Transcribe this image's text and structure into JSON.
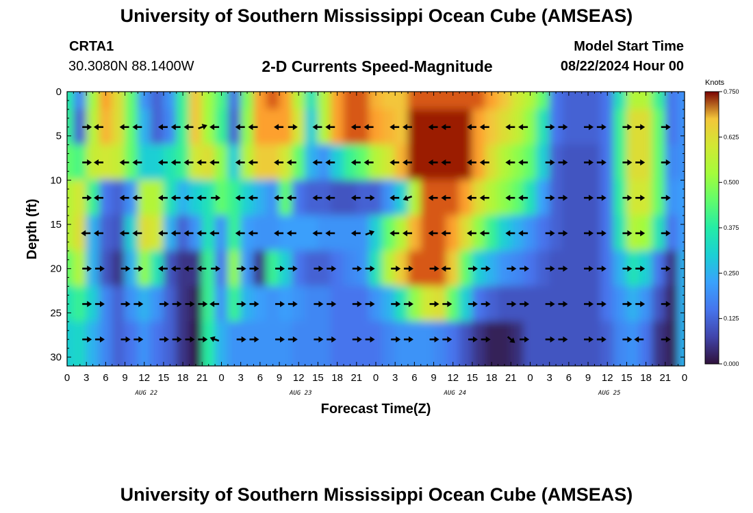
{
  "header": {
    "title": "University of Southern Mississippi Ocean Cube (AMSEAS)",
    "station_id": "CRTA1",
    "coordinates": "30.3080N  88.1400W",
    "plot_title": "2-D Currents Speed-Magnitude",
    "start_label": "Model Start Time",
    "start_value": "08/22/2024 Hour 00"
  },
  "footer": {
    "title": "University of Southern Mississippi Ocean Cube (AMSEAS)"
  },
  "chart_data": {
    "type": "heatmap",
    "title": "2-D Currents Speed-Magnitude",
    "xlabel": "Forecast Time(Z)",
    "ylabel": "Depth (ft)",
    "xlim": [
      0,
      96
    ],
    "ylim": [
      31,
      0
    ],
    "x_tick_values": [
      0,
      3,
      6,
      9,
      12,
      15,
      18,
      21,
      24,
      27,
      30,
      33,
      36,
      39,
      42,
      45,
      48,
      51,
      54,
      57,
      60,
      63,
      66,
      69,
      72,
      75,
      78,
      81,
      84,
      87,
      90,
      93,
      96
    ],
    "x_tick_labels": [
      "0",
      "3",
      "6",
      "9",
      "12",
      "15",
      "18",
      "21",
      "0",
      "3",
      "6",
      "9",
      "12",
      "15",
      "18",
      "21",
      "0",
      "3",
      "6",
      "9",
      "12",
      "15",
      "18",
      "21",
      "0",
      "3",
      "6",
      "9",
      "12",
      "15",
      "18",
      "21",
      "0"
    ],
    "date_labels": [
      {
        "label": "AUG 22",
        "x": 12
      },
      {
        "label": "AUG 23",
        "x": 36
      },
      {
        "label": "AUG 24",
        "x": 60
      },
      {
        "label": "AUG 25",
        "x": 84
      }
    ],
    "y_ticks": [
      0,
      5,
      10,
      15,
      20,
      25,
      30
    ],
    "y_tick_labels": [
      "0",
      "5",
      "10",
      "15",
      "20",
      "25",
      "30"
    ],
    "colorbar": {
      "unit": "Knots",
      "min": 0,
      "max": 0.75,
      "tick_values": [
        0,
        0.125,
        0.25,
        0.375,
        0.5,
        0.625,
        0.75
      ],
      "tick_labels": [
        "0.000",
        "0.125",
        "0.250",
        "0.375",
        "0.500",
        "0.625",
        "0.750"
      ],
      "colormap": "turbo"
    },
    "depths_ft": [
      0,
      4,
      8,
      12,
      16,
      20,
      24,
      28
    ],
    "hours": [
      0,
      2,
      4,
      6,
      8,
      10,
      12,
      14,
      16,
      18,
      20,
      22,
      24,
      26,
      28,
      30,
      32,
      34,
      36,
      38,
      40,
      42,
      44,
      46,
      48,
      50,
      52,
      54,
      56,
      58,
      60,
      62,
      64,
      66,
      68,
      70,
      72,
      74,
      76,
      78,
      80,
      82,
      84,
      86,
      88,
      90,
      92,
      94,
      96
    ],
    "speed_knots": [
      [
        0.38,
        0.18,
        0.52,
        0.7,
        0.62,
        0.45,
        0.2,
        0.12,
        0.2,
        0.4,
        0.66,
        0.52,
        0.42,
        0.14,
        0.48,
        0.7,
        0.72,
        0.7,
        0.55,
        0.35,
        0.55,
        0.7,
        0.72,
        0.72,
        0.68,
        0.66,
        0.66,
        0.72,
        0.72,
        0.72,
        0.72,
        0.72,
        0.72,
        0.7,
        0.66,
        0.6,
        0.55,
        0.45,
        0.15,
        0.12,
        0.12,
        0.12,
        0.15,
        0.35,
        0.55,
        0.55,
        0.4,
        0.15,
        0.2
      ],
      [
        0.4,
        0.12,
        0.55,
        0.68,
        0.62,
        0.45,
        0.25,
        0.12,
        0.18,
        0.4,
        0.66,
        0.52,
        0.4,
        0.12,
        0.5,
        0.7,
        0.7,
        0.7,
        0.6,
        0.3,
        0.55,
        0.7,
        0.72,
        0.72,
        0.7,
        0.68,
        0.66,
        0.74,
        0.74,
        0.74,
        0.74,
        0.74,
        0.7,
        0.66,
        0.62,
        0.58,
        0.5,
        0.35,
        0.15,
        0.12,
        0.12,
        0.12,
        0.15,
        0.4,
        0.62,
        0.62,
        0.45,
        0.15,
        0.2
      ],
      [
        0.45,
        0.42,
        0.58,
        0.6,
        0.58,
        0.45,
        0.3,
        0.3,
        0.35,
        0.4,
        0.6,
        0.62,
        0.5,
        0.3,
        0.55,
        0.65,
        0.65,
        0.6,
        0.45,
        0.25,
        0.2,
        0.3,
        0.4,
        0.45,
        0.55,
        0.6,
        0.68,
        0.74,
        0.74,
        0.74,
        0.74,
        0.74,
        0.7,
        0.62,
        0.55,
        0.5,
        0.45,
        0.3,
        0.12,
        0.1,
        0.1,
        0.1,
        0.15,
        0.4,
        0.62,
        0.62,
        0.45,
        0.18,
        0.2
      ],
      [
        0.55,
        0.6,
        0.4,
        0.15,
        0.12,
        0.2,
        0.55,
        0.55,
        0.35,
        0.25,
        0.3,
        0.35,
        0.45,
        0.4,
        0.3,
        0.25,
        0.2,
        0.45,
        0.15,
        0.12,
        0.12,
        0.1,
        0.1,
        0.12,
        0.12,
        0.2,
        0.3,
        0.55,
        0.72,
        0.72,
        0.72,
        0.7,
        0.62,
        0.55,
        0.5,
        0.45,
        0.35,
        0.22,
        0.12,
        0.1,
        0.1,
        0.1,
        0.15,
        0.38,
        0.6,
        0.6,
        0.45,
        0.2,
        0.22
      ],
      [
        0.55,
        0.62,
        0.25,
        0.12,
        0.1,
        0.3,
        0.62,
        0.6,
        0.25,
        0.12,
        0.2,
        0.35,
        0.2,
        0.4,
        0.22,
        0.2,
        0.2,
        0.22,
        0.22,
        0.22,
        0.2,
        0.2,
        0.2,
        0.2,
        0.3,
        0.45,
        0.55,
        0.68,
        0.72,
        0.72,
        0.7,
        0.62,
        0.5,
        0.4,
        0.3,
        0.25,
        0.2,
        0.15,
        0.12,
        0.1,
        0.1,
        0.1,
        0.15,
        0.35,
        0.55,
        0.52,
        0.35,
        0.15,
        0.22
      ],
      [
        0.45,
        0.55,
        0.25,
        0.1,
        0.05,
        0.25,
        0.5,
        0.35,
        0.1,
        0.05,
        0.05,
        0.4,
        0.15,
        0.5,
        0.2,
        0.05,
        0.4,
        0.3,
        0.15,
        0.12,
        0.12,
        0.15,
        0.18,
        0.2,
        0.35,
        0.55,
        0.65,
        0.72,
        0.72,
        0.72,
        0.65,
        0.45,
        0.3,
        0.25,
        0.2,
        0.18,
        0.15,
        0.12,
        0.1,
        0.1,
        0.1,
        0.1,
        0.15,
        0.25,
        0.35,
        0.3,
        0.15,
        0.05,
        0.25
      ],
      [
        0.35,
        0.4,
        0.3,
        0.18,
        0.12,
        0.2,
        0.25,
        0.2,
        0.12,
        0.05,
        0.02,
        0.4,
        0.2,
        0.4,
        0.25,
        0.22,
        0.2,
        0.22,
        0.2,
        0.18,
        0.18,
        0.15,
        0.15,
        0.15,
        0.2,
        0.25,
        0.35,
        0.5,
        0.6,
        0.62,
        0.45,
        0.3,
        0.15,
        0.12,
        0.1,
        0.1,
        0.1,
        0.1,
        0.1,
        0.1,
        0.1,
        0.1,
        0.15,
        0.2,
        0.25,
        0.2,
        0.1,
        0.03,
        0.25
      ],
      [
        0.3,
        0.32,
        0.25,
        0.18,
        0.12,
        0.15,
        0.2,
        0.15,
        0.12,
        0.05,
        0.01,
        0.38,
        0.25,
        0.2,
        0.2,
        0.2,
        0.2,
        0.2,
        0.18,
        0.18,
        0.18,
        0.15,
        0.15,
        0.15,
        0.15,
        0.18,
        0.2,
        0.2,
        0.2,
        0.18,
        0.15,
        0.1,
        0.05,
        0.02,
        0.02,
        0.04,
        0.1,
        0.1,
        0.1,
        0.1,
        0.1,
        0.1,
        0.12,
        0.18,
        0.2,
        0.15,
        0.05,
        0.02,
        0.25
      ]
    ],
    "arrows": {
      "hours": [
        3,
        5,
        9,
        11,
        15,
        17,
        19,
        21,
        23,
        27,
        29,
        33,
        35,
        39,
        41,
        45,
        47,
        51,
        53,
        57,
        59,
        63,
        65,
        69,
        71,
        75,
        77,
        81,
        83,
        87,
        89,
        93
      ],
      "depths_ft": [
        4,
        8,
        12,
        16,
        20,
        24,
        28
      ],
      "note": "direction in degrees (0 = east/right, 180 = west/left, 90 = up/north on page)",
      "directions_deg": [
        [
          0,
          180,
          180,
          180,
          180,
          180,
          180,
          20,
          180,
          180,
          180,
          180,
          0,
          180,
          180,
          180,
          180,
          180,
          180,
          180,
          180,
          180,
          180,
          180,
          180,
          0,
          0,
          0,
          0,
          0,
          0,
          0
        ],
        [
          0,
          180,
          180,
          180,
          180,
          180,
          180,
          180,
          180,
          180,
          180,
          180,
          180,
          180,
          180,
          180,
          180,
          180,
          180,
          180,
          180,
          180,
          180,
          180,
          180,
          0,
          0,
          0,
          0,
          0,
          0,
          0
        ],
        [
          0,
          180,
          180,
          180,
          180,
          180,
          180,
          180,
          0,
          180,
          180,
          180,
          180,
          180,
          180,
          180,
          0,
          180,
          200,
          180,
          180,
          180,
          180,
          180,
          180,
          0,
          0,
          0,
          0,
          0,
          0,
          0
        ],
        [
          180,
          180,
          180,
          180,
          180,
          180,
          180,
          180,
          180,
          180,
          180,
          180,
          180,
          180,
          180,
          180,
          20,
          180,
          180,
          180,
          180,
          180,
          180,
          180,
          180,
          0,
          0,
          0,
          0,
          0,
          0,
          0
        ],
        [
          0,
          0,
          0,
          0,
          180,
          180,
          180,
          180,
          0,
          0,
          0,
          0,
          0,
          0,
          0,
          0,
          0,
          0,
          0,
          0,
          180,
          0,
          0,
          0,
          0,
          0,
          0,
          0,
          0,
          0,
          0,
          0
        ],
        [
          0,
          0,
          0,
          0,
          0,
          0,
          0,
          0,
          180,
          0,
          0,
          0,
          0,
          0,
          0,
          0,
          0,
          0,
          0,
          0,
          0,
          0,
          0,
          0,
          0,
          0,
          0,
          0,
          0,
          0,
          0,
          0
        ],
        [
          0,
          0,
          0,
          0,
          0,
          0,
          0,
          0,
          160,
          0,
          0,
          0,
          0,
          0,
          0,
          0,
          0,
          0,
          0,
          0,
          0,
          0,
          0,
          -40,
          0,
          0,
          0,
          0,
          0,
          0,
          180,
          0
        ]
      ]
    }
  }
}
